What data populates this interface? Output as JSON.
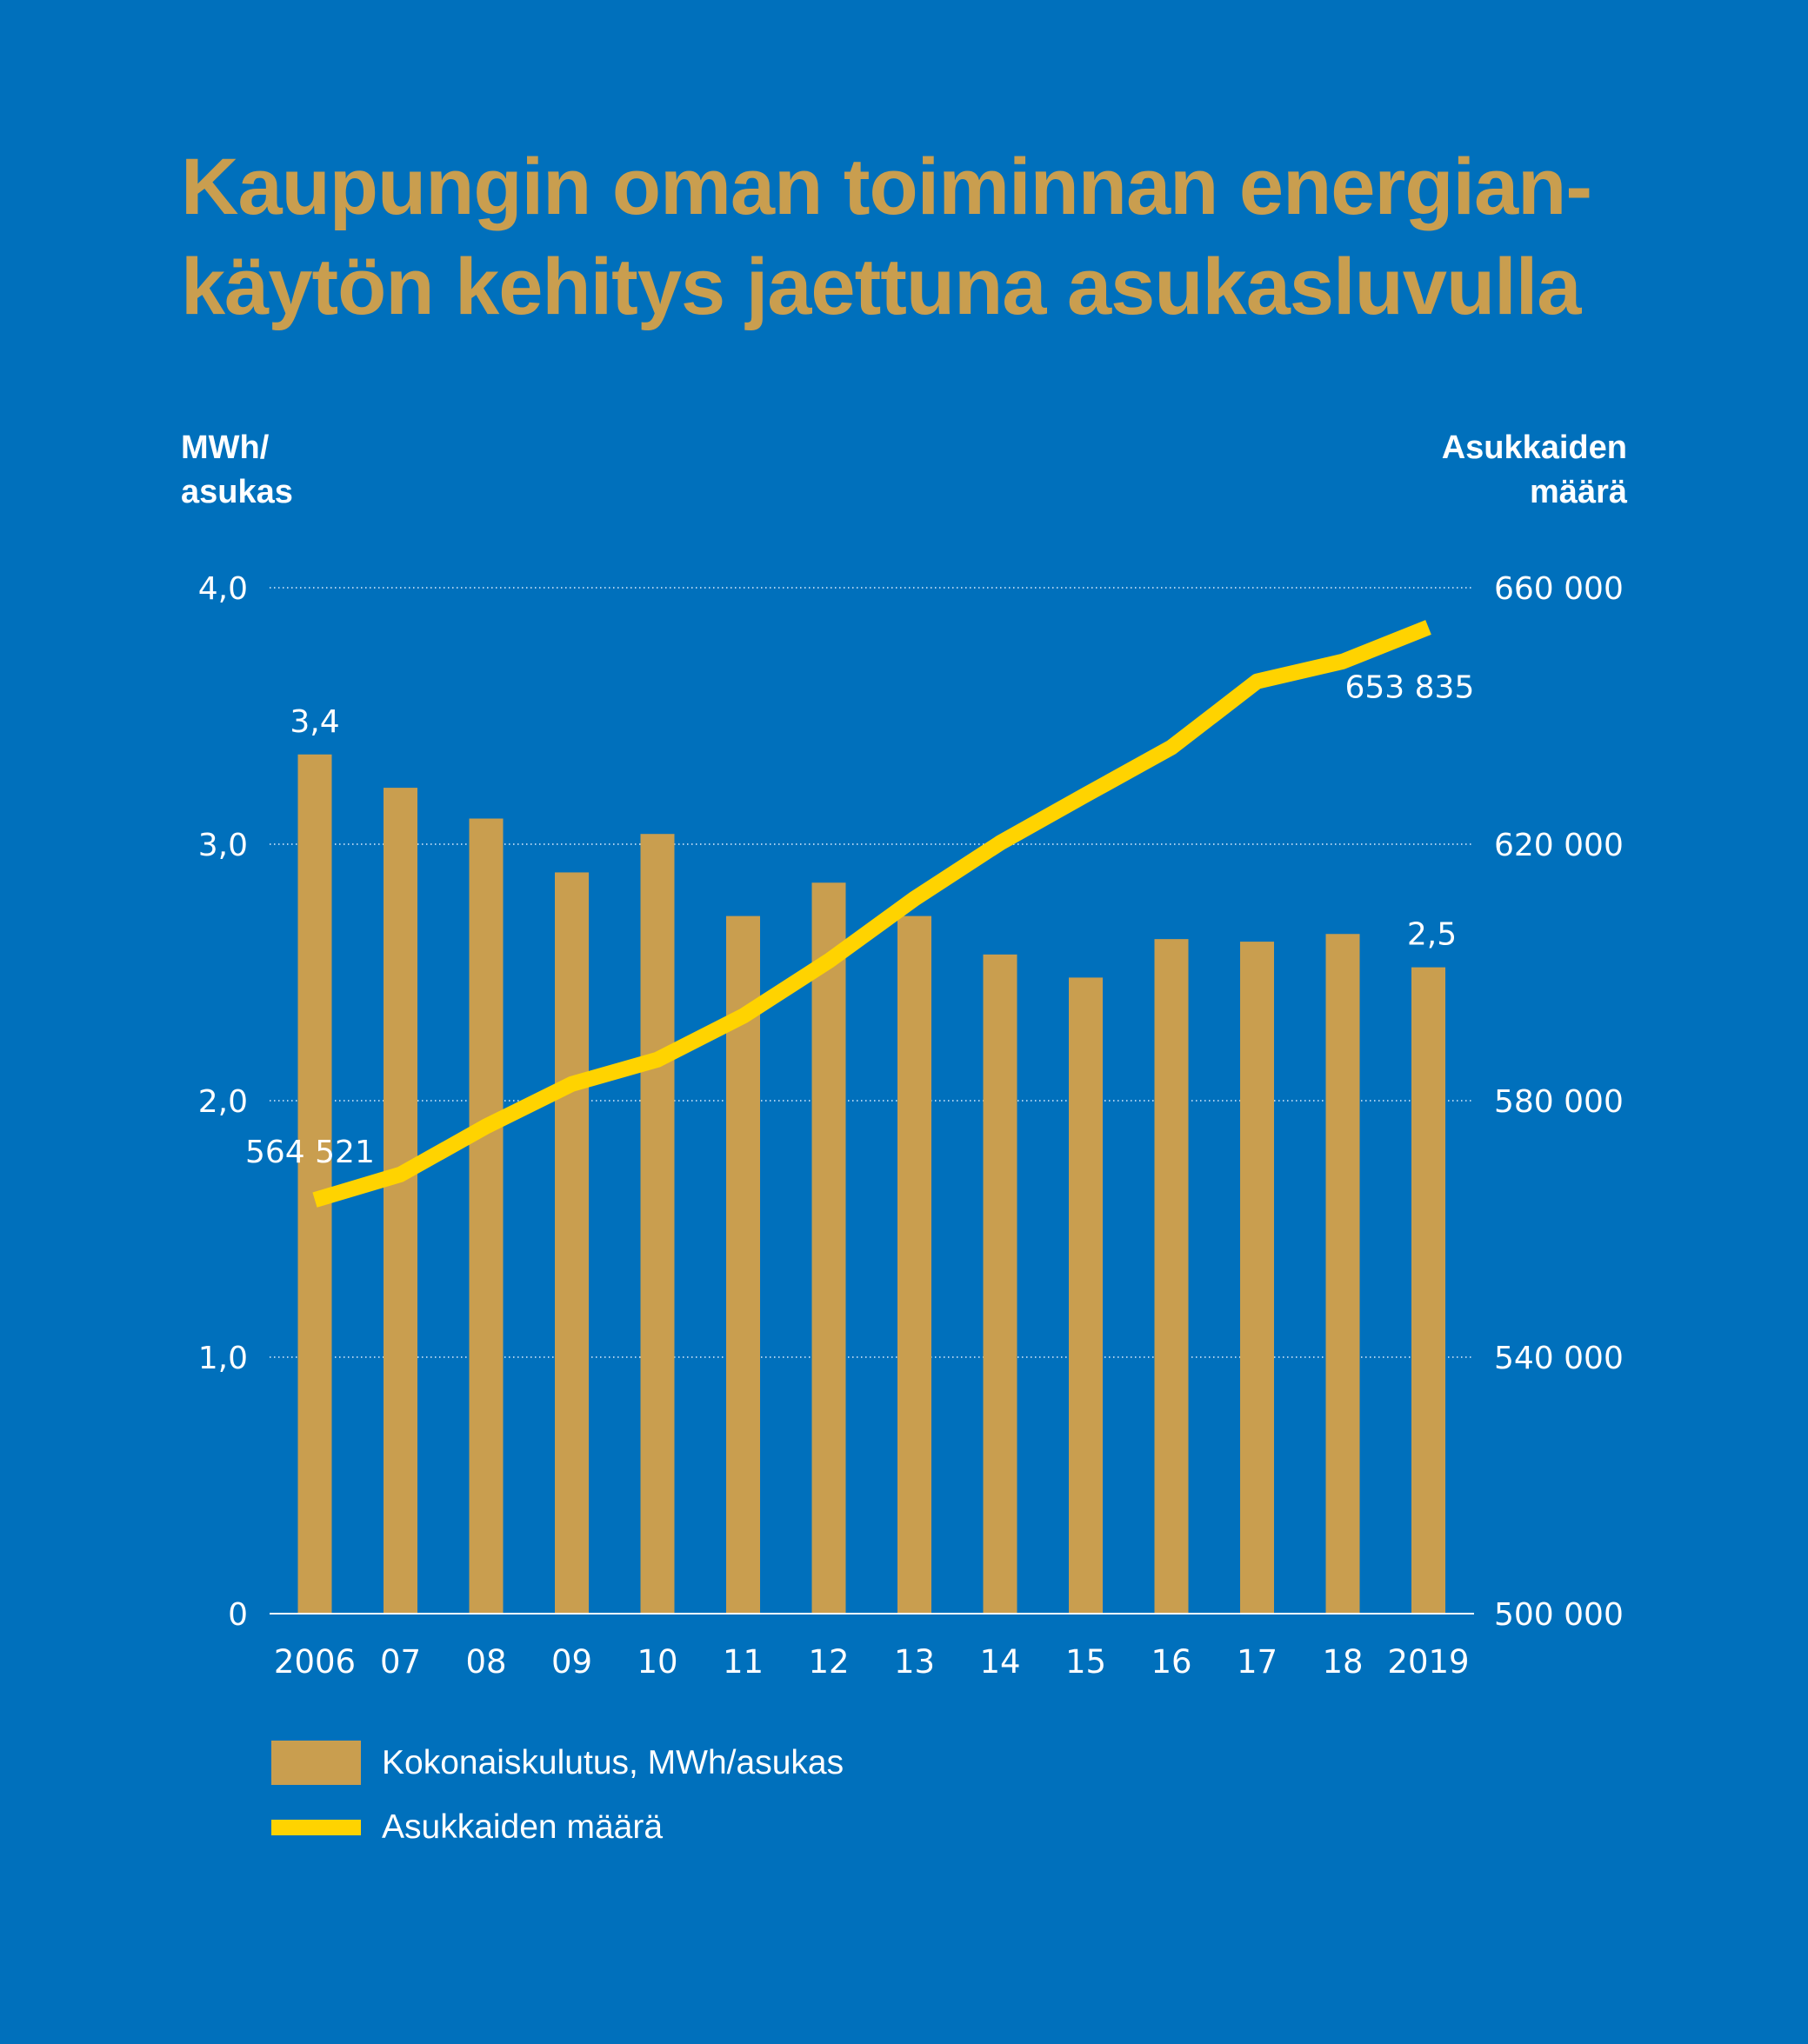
{
  "chart_data": {
    "type": "bar",
    "title": "Kaupungin oman toiminnan energian-käytön kehitys jaettuna asukasluvulla",
    "title_lines": [
      "Kaupungin oman toiminnan energian-",
      "käytön kehitys jaettuna asukasluvulla"
    ],
    "ylabel_left_lines": [
      "MWh/",
      "asukas"
    ],
    "ylabel_right_lines": [
      "Asukkaiden",
      "määrä"
    ],
    "categories": [
      "2006",
      "07",
      "08",
      "09",
      "10",
      "11",
      "12",
      "13",
      "14",
      "15",
      "16",
      "17",
      "18",
      "2019"
    ],
    "series": [
      {
        "name": "Kokonaiskulutus, MWh/asukas",
        "type": "bar",
        "axis": "left",
        "values": [
          3.35,
          3.22,
          3.1,
          2.89,
          3.04,
          2.72,
          2.85,
          2.72,
          2.57,
          2.48,
          2.63,
          2.62,
          2.65,
          2.52
        ],
        "color": "#c99e4f"
      },
      {
        "name": "Asukkaiden määrä",
        "type": "line",
        "axis": "right",
        "values": [
          564521,
          568500,
          576000,
          582600,
          586400,
          593200,
          601800,
          611500,
          620200,
          627700,
          635100,
          645400,
          648500,
          653835
        ],
        "color": "#ffd300"
      }
    ],
    "data_labels": [
      {
        "series": 0,
        "index": 0,
        "text": "3,4"
      },
      {
        "series": 0,
        "index": 13,
        "text": "2,5"
      },
      {
        "series": 1,
        "index": 0,
        "text": "564 521"
      },
      {
        "series": 1,
        "index": 13,
        "text": "653 835"
      }
    ],
    "y_left": {
      "lim": [
        0,
        4
      ],
      "ticks": [
        0,
        1,
        2,
        3,
        4
      ],
      "tick_labels": [
        "0",
        "1,0",
        "2,0",
        "3,0",
        "4,0"
      ]
    },
    "y_right": {
      "lim": [
        500000,
        660000
      ],
      "ticks": [
        500000,
        540000,
        580000,
        620000,
        660000
      ],
      "tick_labels": [
        "500 000",
        "540 000",
        "580 000",
        "620 000",
        "660 000"
      ]
    },
    "grid": "dotted horizontal",
    "legend_position": "bottom-left"
  },
  "colors": {
    "background": "#0070bc",
    "title": "#c99e4f",
    "text": "#ffffff",
    "bar": "#c99e4f",
    "line": "#ffd300",
    "grid": "#a9cfee"
  }
}
